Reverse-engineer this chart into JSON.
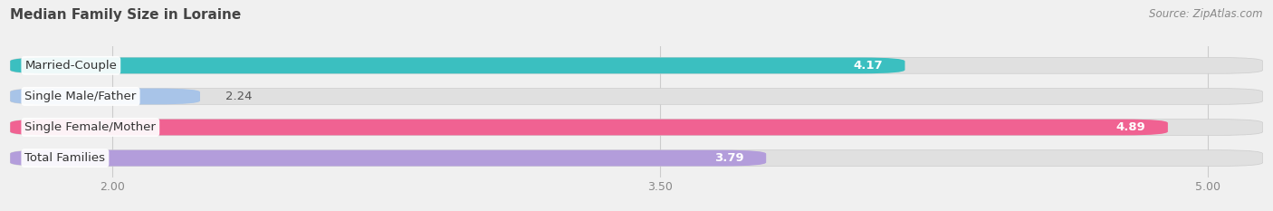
{
  "title": "Median Family Size in Loraine",
  "source": "Source: ZipAtlas.com",
  "categories": [
    "Married-Couple",
    "Single Male/Father",
    "Single Female/Mother",
    "Total Families"
  ],
  "values": [
    4.17,
    2.24,
    4.89,
    3.79
  ],
  "colors": [
    "#3bbfc0",
    "#a8c4e8",
    "#f06292",
    "#b39ddb"
  ],
  "xmin": 1.72,
  "xmax": 5.15,
  "xticks": [
    2.0,
    3.5,
    5.0
  ],
  "bar_height": 0.52,
  "bar_gap": 0.25,
  "label_fontsize": 9.5,
  "value_fontsize": 9.5,
  "title_fontsize": 11,
  "source_fontsize": 8.5,
  "background_color": "#f0f0f0",
  "bar_bg_color": "#e0e0e0",
  "label_bg_color": "#ffffff",
  "value_threshold": 3.5
}
